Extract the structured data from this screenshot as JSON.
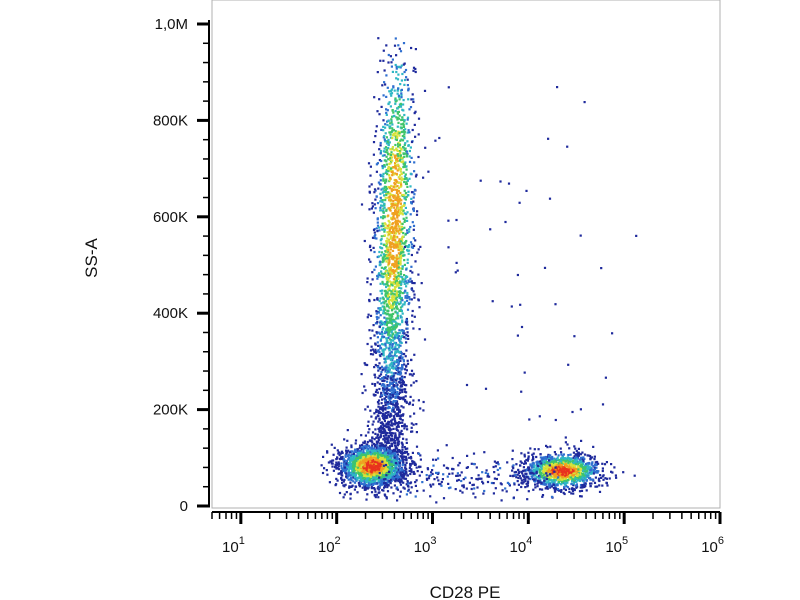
{
  "chart_data": {
    "type": "scatter",
    "title": "",
    "xlabel": "CD28 PE",
    "ylabel": "SS-A",
    "x_scale": "log",
    "xlim": [
      5,
      1000000
    ],
    "ylim": [
      0,
      1000000
    ],
    "x_ticks": [
      {
        "value": 10,
        "base": "10",
        "exp": "1"
      },
      {
        "value": 100,
        "base": "10",
        "exp": "2"
      },
      {
        "value": 1000,
        "base": "10",
        "exp": "3"
      },
      {
        "value": 10000,
        "base": "10",
        "exp": "4"
      },
      {
        "value": 100000,
        "base": "10",
        "exp": "5"
      },
      {
        "value": 1000000,
        "base": "10",
        "exp": "6"
      }
    ],
    "y_ticks": [
      {
        "value": 0,
        "label": "0"
      },
      {
        "value": 200000,
        "label": "200K"
      },
      {
        "value": 400000,
        "label": "400K"
      },
      {
        "value": 600000,
        "label": "600K"
      },
      {
        "value": 800000,
        "label": "800K"
      },
      {
        "value": 1000000,
        "label": "1,0M"
      }
    ],
    "grid": false,
    "legend": "none",
    "color_scale": [
      "#1f2a9c",
      "#2f6fd0",
      "#2fb7c4",
      "#3fc46a",
      "#d8e23a",
      "#f0a020",
      "#e8321e"
    ],
    "populations": [
      {
        "x_center": 230,
        "x_spread": 0.17,
        "y_center": 85000,
        "y_spread": 22000,
        "density": "very high"
      },
      {
        "x_center": 380,
        "x_spread": 0.1,
        "y_center": 600000,
        "y_spread": 190000,
        "density": "high"
      },
      {
        "x_center": 22000,
        "x_spread": 0.2,
        "y_center": 75000,
        "y_spread": 18000,
        "density": "high"
      }
    ]
  }
}
